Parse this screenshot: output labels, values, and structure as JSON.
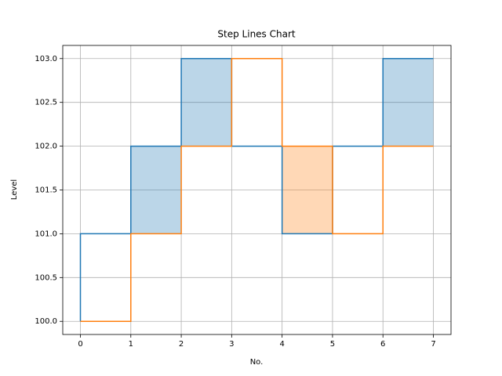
{
  "chart_data": {
    "type": "step",
    "step": "pre",
    "title": "Step Lines Chart",
    "xlabel": "No.",
    "ylabel": "Level",
    "x": [
      0,
      1,
      2,
      3,
      4,
      5,
      6,
      7
    ],
    "series": [
      {
        "color": "#1f77b4",
        "values": [
          100,
          101,
          102,
          103,
          102,
          101,
          102,
          103
        ]
      },
      {
        "color": "#ff7f0e",
        "values": [
          100,
          100,
          101,
          102,
          103,
          102,
          101,
          102
        ]
      }
    ],
    "fill_between": true,
    "fill_alpha": 0.3,
    "xlim": [
      -0.35,
      7.35
    ],
    "xticks": [
      0,
      1,
      2,
      3,
      4,
      5,
      6,
      7
    ],
    "ylim": [
      99.85,
      103.15
    ],
    "yticks": [
      {
        "value": 100,
        "label": "100.0"
      },
      {
        "value": 100.5,
        "label": "100.5"
      },
      {
        "value": 101,
        "label": "101.0"
      },
      {
        "value": 101.5,
        "label": "101.5"
      },
      {
        "value": 102,
        "label": "102.0"
      },
      {
        "value": 102.5,
        "label": "102.5"
      },
      {
        "value": 103,
        "label": "103.0"
      }
    ],
    "grid": true
  }
}
